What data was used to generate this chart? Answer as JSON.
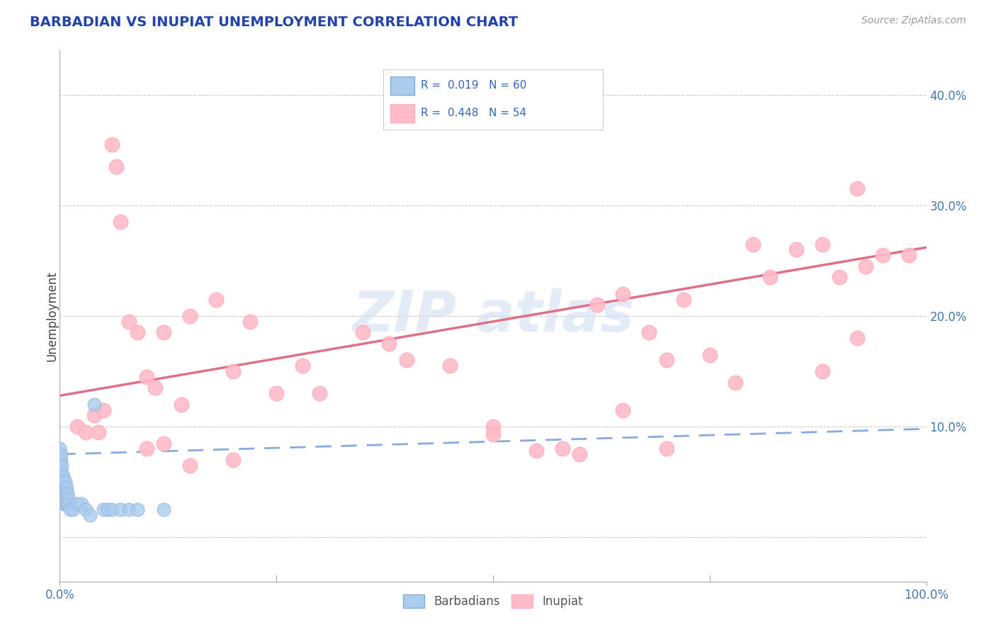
{
  "title": "BARBADIAN VS INUPIAT UNEMPLOYMENT CORRELATION CHART",
  "source": "Source: ZipAtlas.com",
  "ylabel": "Unemployment",
  "yticks": [
    0.0,
    0.1,
    0.2,
    0.3,
    0.4
  ],
  "ytick_labels": [
    "",
    "10.0%",
    "20.0%",
    "30.0%",
    "40.0%"
  ],
  "xlim": [
    0.0,
    1.0
  ],
  "ylim": [
    -0.04,
    0.44
  ],
  "legend_label1": "Barbadians",
  "legend_label2": "Inupiat",
  "background_color": "#FFFFFF",
  "blue_scatter_x": [
    0.0,
    0.0,
    0.0,
    0.0,
    0.0,
    0.0,
    0.0,
    0.0,
    0.0,
    0.0,
    0.001,
    0.001,
    0.001,
    0.001,
    0.001,
    0.001,
    0.001,
    0.002,
    0.002,
    0.002,
    0.002,
    0.002,
    0.002,
    0.003,
    0.003,
    0.003,
    0.003,
    0.003,
    0.004,
    0.004,
    0.004,
    0.004,
    0.005,
    0.005,
    0.005,
    0.006,
    0.006,
    0.006,
    0.007,
    0.007,
    0.008,
    0.008,
    0.009,
    0.009,
    0.01,
    0.01,
    0.012,
    0.015,
    0.02,
    0.025,
    0.03,
    0.035,
    0.04,
    0.05,
    0.055,
    0.06,
    0.07,
    0.08,
    0.09,
    0.12
  ],
  "blue_scatter_y": [
    0.06,
    0.065,
    0.07,
    0.075,
    0.08,
    0.05,
    0.055,
    0.045,
    0.04,
    0.035,
    0.05,
    0.055,
    0.06,
    0.07,
    0.075,
    0.04,
    0.045,
    0.045,
    0.05,
    0.055,
    0.065,
    0.04,
    0.035,
    0.04,
    0.045,
    0.05,
    0.055,
    0.035,
    0.04,
    0.045,
    0.055,
    0.03,
    0.035,
    0.04,
    0.05,
    0.035,
    0.04,
    0.05,
    0.03,
    0.04,
    0.035,
    0.045,
    0.03,
    0.04,
    0.03,
    0.035,
    0.025,
    0.025,
    0.03,
    0.03,
    0.025,
    0.02,
    0.12,
    0.025,
    0.025,
    0.025,
    0.025,
    0.025,
    0.025,
    0.025
  ],
  "pink_scatter_x": [
    0.02,
    0.03,
    0.04,
    0.045,
    0.05,
    0.06,
    0.065,
    0.07,
    0.08,
    0.09,
    0.1,
    0.11,
    0.12,
    0.14,
    0.15,
    0.18,
    0.2,
    0.22,
    0.25,
    0.28,
    0.3,
    0.35,
    0.38,
    0.4,
    0.45,
    0.5,
    0.55,
    0.58,
    0.6,
    0.62,
    0.65,
    0.68,
    0.7,
    0.72,
    0.75,
    0.78,
    0.8,
    0.82,
    0.85,
    0.88,
    0.9,
    0.92,
    0.93,
    0.95,
    0.98,
    0.1,
    0.12,
    0.15,
    0.2,
    0.5,
    0.65,
    0.7,
    0.88,
    0.92
  ],
  "pink_scatter_y": [
    0.1,
    0.095,
    0.11,
    0.095,
    0.115,
    0.355,
    0.335,
    0.285,
    0.195,
    0.185,
    0.145,
    0.135,
    0.185,
    0.12,
    0.2,
    0.215,
    0.15,
    0.195,
    0.13,
    0.155,
    0.13,
    0.185,
    0.175,
    0.16,
    0.155,
    0.1,
    0.078,
    0.08,
    0.075,
    0.21,
    0.22,
    0.185,
    0.16,
    0.215,
    0.165,
    0.14,
    0.265,
    0.235,
    0.26,
    0.265,
    0.235,
    0.315,
    0.245,
    0.255,
    0.255,
    0.08,
    0.085,
    0.065,
    0.07,
    0.093,
    0.115,
    0.08,
    0.15,
    0.18
  ],
  "blue_line_x0": 0.0,
  "blue_line_x1": 1.0,
  "blue_line_y0": 0.075,
  "blue_line_y1": 0.098,
  "pink_line_x0": 0.0,
  "pink_line_x1": 1.0,
  "pink_line_y0": 0.128,
  "pink_line_y1": 0.262
}
